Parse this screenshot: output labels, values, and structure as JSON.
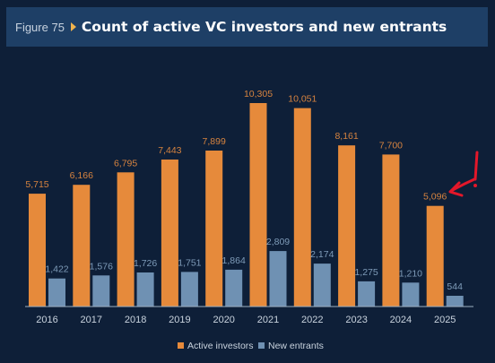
{
  "header": {
    "figure_label": "Figure 75",
    "title": "Count of active VC investors and new entrants"
  },
  "colors": {
    "active": "#e68a3b",
    "new": "#6f91b3",
    "background": "#0e1f38",
    "header_bg": "#1e3f66",
    "annotation": "#e3172a"
  },
  "annotation": {
    "mark": "!",
    "arrow_target": "2025 Active investors"
  },
  "chart_data": {
    "type": "bar",
    "categories": [
      "2016",
      "2017",
      "2018",
      "2019",
      "2020",
      "2021",
      "2022",
      "2023",
      "2024",
      "2025"
    ],
    "series": [
      {
        "name": "Active investors",
        "values": [
          5715,
          6166,
          6795,
          7443,
          7899,
          10305,
          10051,
          8161,
          7700,
          5096
        ],
        "labels": [
          "5,715",
          "6,166",
          "6,795",
          "7,443",
          "7,899",
          "10,305",
          "10,051",
          "8,161",
          "7,700",
          "5,096"
        ]
      },
      {
        "name": "New entrants",
        "values": [
          1422,
          1576,
          1726,
          1751,
          1864,
          2809,
          2174,
          1275,
          1210,
          544
        ],
        "labels": [
          "1,422",
          "1,576",
          "1,726",
          "1,751",
          "1,864",
          "2,809",
          "2,174",
          "1,275",
          "1,210",
          "544"
        ]
      }
    ],
    "ylim": [
      0,
      10305
    ],
    "grid": false,
    "legend": "bottom"
  }
}
